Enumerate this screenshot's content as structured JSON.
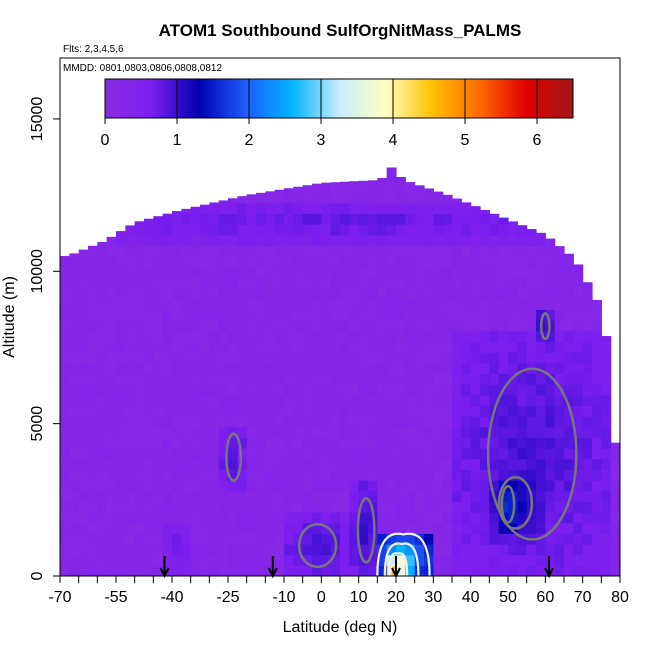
{
  "chart_data": {
    "type": "heatmap",
    "title": "ATOM1 Southbound SulfOrgNitMass_PALMS",
    "flights_label": "Flts: 2,3,4,5,6",
    "dates_label": "MMDD: 0801,0803,0806,0808,0812",
    "xlabel": "Latitude (deg N)",
    "ylabel": "Altitude (m)",
    "xlim": [
      -70,
      80
    ],
    "ylim": [
      0,
      17000
    ],
    "x_ticks": [
      "-70",
      "-55",
      "-40",
      "-25",
      "-10",
      "0",
      "10",
      "20",
      "30",
      "40",
      "50",
      "60",
      "70",
      "80"
    ],
    "x_tick_values": [
      -70,
      -55,
      -40,
      -25,
      -10,
      0,
      10,
      20,
      30,
      40,
      50,
      60,
      70,
      80
    ],
    "x_minor_ticks": [
      -65,
      -60,
      -50,
      -45,
      -35,
      -30,
      -20,
      -15,
      -5,
      5,
      15,
      25,
      35,
      45,
      55,
      65,
      75
    ],
    "y_ticks": [
      "0",
      "5000",
      "10000",
      "15000"
    ],
    "y_tick_values": [
      0,
      5000,
      10000,
      15000
    ],
    "colorbar": {
      "min": 0,
      "max": 6.5,
      "ticks": [
        "0",
        "1",
        "2",
        "3",
        "4",
        "5",
        "6"
      ],
      "tick_values": [
        0,
        1,
        2,
        3,
        4,
        5,
        6
      ],
      "stops": [
        "#8a2be2",
        "#7b1ff0",
        "#0000b0",
        "#1e5cff",
        "#00b4ff",
        "#c8ecff",
        "#ffffc0",
        "#ffc000",
        "#ff6a00",
        "#e00000",
        "#a01818"
      ]
    },
    "background_value": 0.25,
    "coverage_top": [
      {
        "lat": -68,
        "alt": 10500
      },
      {
        "lat": -58,
        "alt": 11000
      },
      {
        "lat": -50,
        "alt": 11600
      },
      {
        "lat": -38,
        "alt": 12000
      },
      {
        "lat": -20,
        "alt": 12500
      },
      {
        "lat": 0,
        "alt": 12900
      },
      {
        "lat": 16,
        "alt": 13000
      },
      {
        "lat": 18,
        "alt": 13500
      },
      {
        "lat": 22,
        "alt": 13000
      },
      {
        "lat": 34,
        "alt": 12500
      },
      {
        "lat": 48,
        "alt": 11800
      },
      {
        "lat": 60,
        "alt": 11200
      },
      {
        "lat": 68,
        "alt": 10400
      },
      {
        "lat": 74,
        "alt": 9000
      },
      {
        "lat": 78,
        "alt": 7000
      },
      {
        "lat": 80,
        "alt": 0
      }
    ],
    "coverage_south_edge": -69,
    "features": [
      {
        "lat0": -66,
        "lat1": 75,
        "alt0": 11000,
        "alt1": 12300,
        "value": 0.8
      },
      {
        "lat0": -27,
        "lat1": -20,
        "alt0": 2800,
        "alt1": 5000,
        "value": 0.9
      },
      {
        "lat0": -42,
        "lat1": -35,
        "alt0": 0,
        "alt1": 1800,
        "value": 0.7
      },
      {
        "lat0": -10,
        "lat1": 8,
        "alt0": 0,
        "alt1": 2000,
        "value": 0.95
      },
      {
        "lat0": 8,
        "lat1": 16,
        "alt0": 0,
        "alt1": 3000,
        "value": 1.05
      },
      {
        "lat0": 35,
        "lat1": 78,
        "alt0": 0,
        "alt1": 8000,
        "value": 0.95
      },
      {
        "lat0": 44,
        "lat1": 60,
        "alt0": 1200,
        "alt1": 3600,
        "value": 1.3
      },
      {
        "lat0": 47,
        "lat1": 53,
        "alt0": 1500,
        "alt1": 3200,
        "value": 1.8
      },
      {
        "lat0": 58,
        "lat1": 62,
        "alt0": 7600,
        "alt1": 8800,
        "value": 1.2
      },
      {
        "lat0": 15,
        "lat1": 29,
        "alt0": 0,
        "alt1": 1300,
        "value": 2.4
      },
      {
        "lat0": 17,
        "lat1": 26,
        "alt0": 0,
        "alt1": 1000,
        "value": 3.4
      },
      {
        "lat0": 18,
        "lat1": 23,
        "alt0": 0,
        "alt1": 700,
        "value": 4.5
      },
      {
        "lat0": 18.5,
        "lat1": 21,
        "alt0": 0,
        "alt1": 350,
        "value": 6.2
      }
    ],
    "arrows_lat": [
      -42,
      -13,
      20,
      61
    ]
  }
}
